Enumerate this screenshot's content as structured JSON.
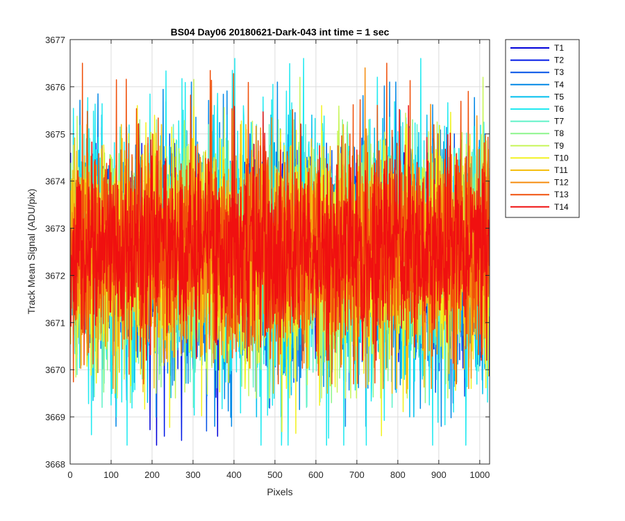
{
  "chart_data": {
    "type": "line",
    "title": "BS04 Day06 20180621-Dark-043 int time = 1 sec",
    "xlabel": "Pixels",
    "ylabel": "Track Mean Signal (ADU/pix)",
    "xlim": [
      0,
      1024
    ],
    "ylim": [
      3668,
      3677
    ],
    "xticks": [
      0,
      100,
      200,
      300,
      400,
      500,
      600,
      700,
      800,
      900,
      1000
    ],
    "yticks": [
      3668,
      3669,
      3670,
      3671,
      3672,
      3673,
      3674,
      3675,
      3676,
      3677
    ],
    "grid": true,
    "legend_position": "outside-top-right",
    "series_summary": "14 noisy traces over pixels 1–1024, each fluctuating roughly between 3668.5 and 3676.6 ADU/pix around a mean of about 3672.5",
    "series": [
      {
        "name": "T1",
        "color": "#0000d9",
        "mean": 3672.3,
        "min": 3668.4,
        "max": 3674.6
      },
      {
        "name": "T2",
        "color": "#0019e6",
        "mean": 3672.3,
        "min": 3668.5,
        "max": 3674.8
      },
      {
        "name": "T3",
        "color": "#0050e6",
        "mean": 3672.4,
        "min": 3668.7,
        "max": 3675.0
      },
      {
        "name": "T4",
        "color": "#0087e6",
        "mean": 3672.4,
        "min": 3668.8,
        "max": 3676.1
      },
      {
        "name": "T5",
        "color": "#00bfee",
        "mean": 3672.4,
        "min": 3669.0,
        "max": 3675.4
      },
      {
        "name": "T6",
        "color": "#20e9f0",
        "mean": 3672.4,
        "min": 3668.4,
        "max": 3676.6
      },
      {
        "name": "T7",
        "color": "#5ff2c8",
        "mean": 3672.5,
        "min": 3669.2,
        "max": 3675.2
      },
      {
        "name": "T8",
        "color": "#8cf58c",
        "mean": 3672.5,
        "min": 3669.3,
        "max": 3675.3
      },
      {
        "name": "T9",
        "color": "#c8f55a",
        "mean": 3672.5,
        "min": 3669.4,
        "max": 3676.2
      },
      {
        "name": "T10",
        "color": "#f2f21e",
        "mean": 3672.5,
        "min": 3668.6,
        "max": 3675.6
      },
      {
        "name": "T11",
        "color": "#f5be0f",
        "mean": 3672.5,
        "min": 3669.5,
        "max": 3675.2
      },
      {
        "name": "T12",
        "color": "#f58c0f",
        "mean": 3672.5,
        "min": 3669.6,
        "max": 3676.4
      },
      {
        "name": "T13",
        "color": "#f0500a",
        "mean": 3672.6,
        "min": 3669.7,
        "max": 3676.5
      },
      {
        "name": "T14",
        "color": "#f01010",
        "mean": 3672.6,
        "min": 3670.2,
        "max": 3675.6
      }
    ]
  }
}
